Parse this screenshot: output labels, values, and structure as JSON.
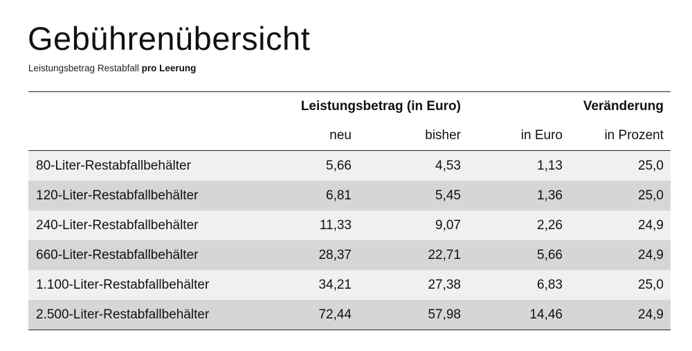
{
  "page": {
    "title": "Gebührenübersicht",
    "subtitle_regular": "Leistungsbetrag Restabfall ",
    "subtitle_bold": "pro Leerung"
  },
  "table": {
    "group_headers": {
      "leistungsbetrag": "Leistungsbetrag (in Euro)",
      "veraenderung": "Veränderung"
    },
    "sub_headers": {
      "neu": "neu",
      "bisher": "bisher",
      "in_euro": "in Euro",
      "in_prozent": "in Prozent"
    },
    "rows": [
      {
        "name": "80-Liter-Restabfallbehälter",
        "neu": "5,66",
        "bisher": "4,53",
        "in_euro": "1,13",
        "in_prozent": "25,0"
      },
      {
        "name": "120-Liter-Restabfallbehälter",
        "neu": "6,81",
        "bisher": "5,45",
        "in_euro": "1,36",
        "in_prozent": "25,0"
      },
      {
        "name": "240-Liter-Restabfallbehälter",
        "neu": "11,33",
        "bisher": "9,07",
        "in_euro": "2,26",
        "in_prozent": "24,9"
      },
      {
        "name": "660-Liter-Restabfallbehälter",
        "neu": "28,37",
        "bisher": "22,71",
        "in_euro": "5,66",
        "in_prozent": "24,9"
      },
      {
        "name": "1.100-Liter-Restabfallbehälter",
        "neu": "34,21",
        "bisher": "27,38",
        "in_euro": "6,83",
        "in_prozent": "25,0"
      },
      {
        "name": "2.500-Liter-Restabfallbehälter",
        "neu": "72,44",
        "bisher": "57,98",
        "in_euro": "14,46",
        "in_prozent": "24,9"
      }
    ]
  },
  "colors": {
    "row_light": "#f0f0f0",
    "row_dark": "#d6d6d6",
    "rule": "#222222"
  }
}
